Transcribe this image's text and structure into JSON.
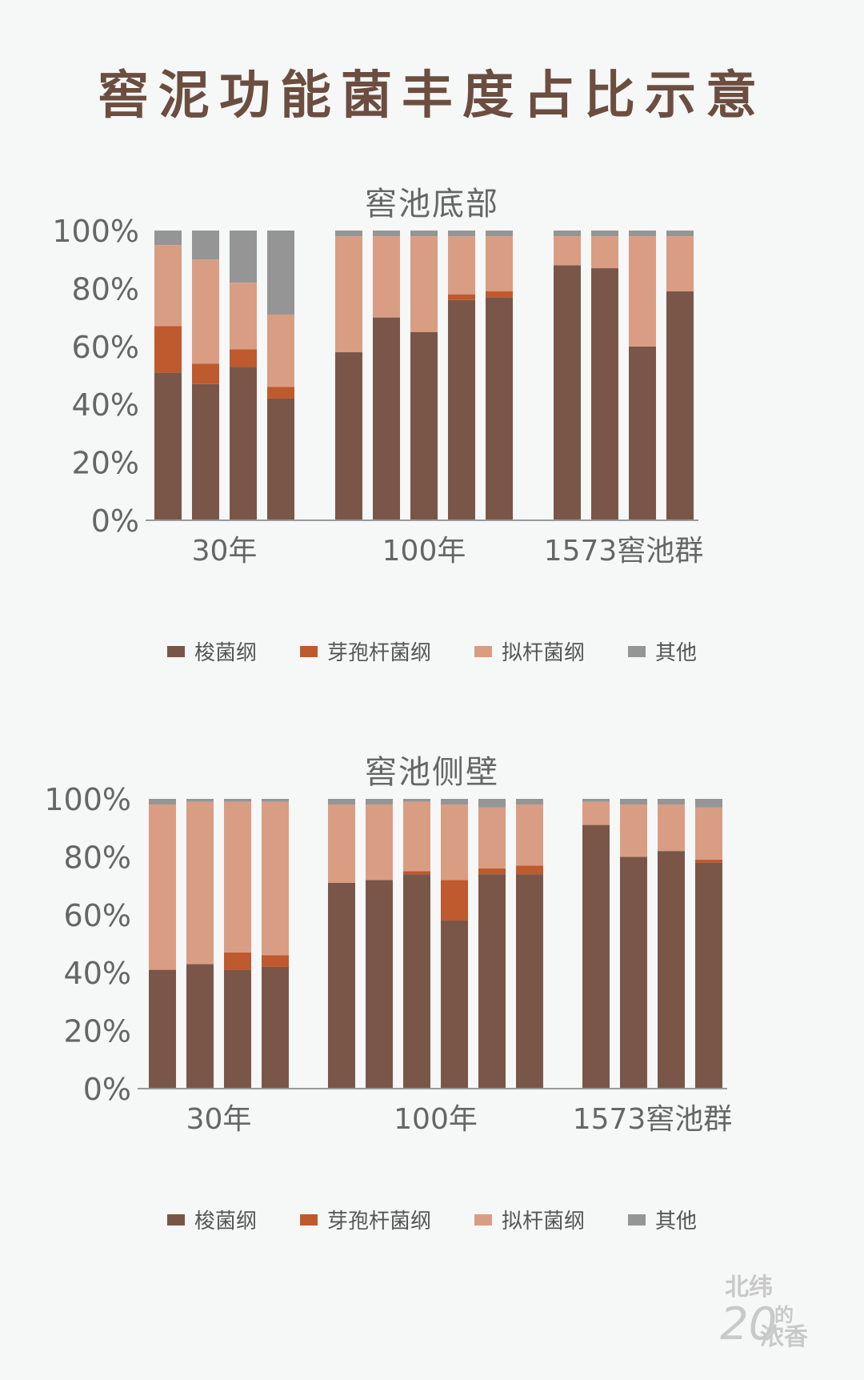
{
  "title": "窖泥功能菌丰度占比示意",
  "legend_labels": [
    "梭菌纲",
    "芽孢杆菌纲",
    "拟杆菌纲",
    "其他"
  ],
  "colors": {
    "梭菌纲": "#7a5648",
    "芽孢杆菌纲": "#bf5a2e",
    "拟杆菌纲": "#d99d83",
    "其他": "#959595"
  },
  "watermark": {
    "line1": "北纬",
    "line2": "的",
    "number": "20",
    "line3": "浓香"
  },
  "chart_data": [
    {
      "type": "bar",
      "stacked": true,
      "title": "窖池底部",
      "y_ticks": [
        "100%",
        "80%",
        "60%",
        "40%",
        "20%",
        "0%"
      ],
      "ylim": [
        0,
        100
      ],
      "groups": [
        {
          "label": "30年",
          "bars": 4
        },
        {
          "label": "100年",
          "bars": 5
        },
        {
          "label": "1573窖池群",
          "bars": 4
        }
      ],
      "series": [
        {
          "name": "梭菌纲",
          "values": [
            51,
            47,
            53,
            42,
            58,
            70,
            65,
            76,
            77,
            88,
            87,
            60,
            79
          ]
        },
        {
          "name": "芽孢杆菌纲",
          "values": [
            16,
            7,
            6,
            4,
            0,
            0,
            0,
            2,
            2,
            0,
            0,
            0,
            0
          ]
        },
        {
          "name": "拟杆菌纲",
          "values": [
            28,
            36,
            23,
            25,
            40,
            28,
            33,
            20,
            19,
            10,
            11,
            38,
            19
          ]
        },
        {
          "name": "其他",
          "values": [
            5,
            10,
            18,
            29,
            2,
            2,
            2,
            2,
            2,
            2,
            2,
            2,
            2
          ]
        }
      ]
    },
    {
      "type": "bar",
      "stacked": true,
      "title": "窖池侧壁",
      "y_ticks": [
        "100%",
        "80%",
        "60%",
        "40%",
        "20%",
        "0%"
      ],
      "ylim": [
        0,
        100
      ],
      "groups": [
        {
          "label": "30年",
          "bars": 4
        },
        {
          "label": "100年",
          "bars": 6
        },
        {
          "label": "1573窖池群",
          "bars": 4
        }
      ],
      "series": [
        {
          "name": "梭菌纲",
          "values": [
            41,
            43,
            41,
            42,
            71,
            72,
            74,
            58,
            74,
            74,
            91,
            80,
            82,
            78
          ]
        },
        {
          "name": "芽孢杆菌纲",
          "values": [
            0,
            0,
            6,
            4,
            0,
            0,
            1,
            14,
            2,
            3,
            0,
            0,
            0,
            1
          ]
        },
        {
          "name": "拟杆菌纲",
          "values": [
            57,
            56,
            52,
            53,
            27,
            26,
            24,
            26,
            21,
            21,
            8,
            18,
            16,
            18
          ]
        },
        {
          "name": "其他",
          "values": [
            2,
            1,
            1,
            1,
            2,
            2,
            1,
            2,
            3,
            2,
            1,
            2,
            2,
            3
          ]
        }
      ]
    }
  ]
}
